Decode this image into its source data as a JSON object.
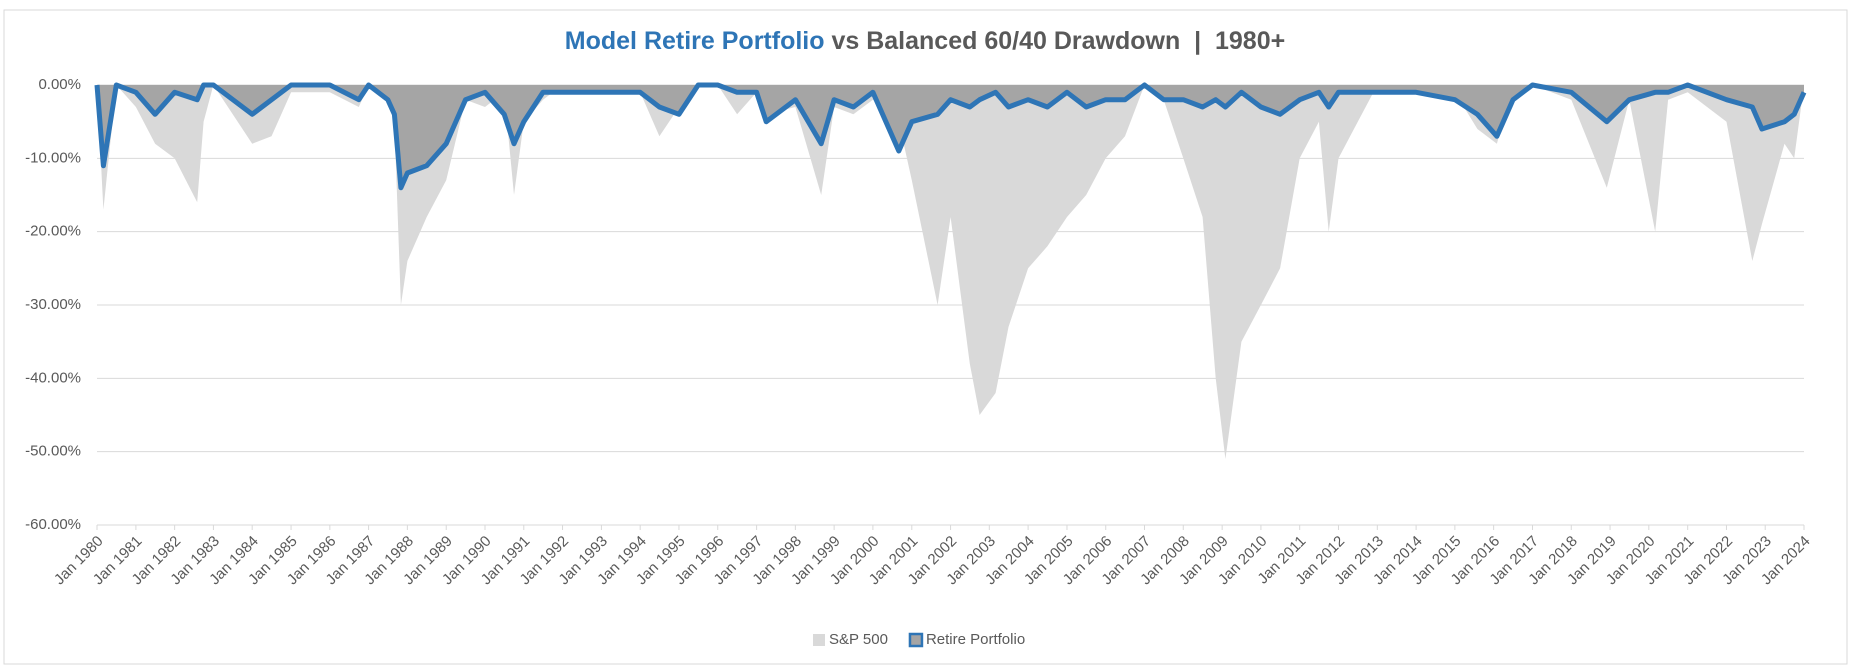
{
  "chart_data": {
    "type": "area-line",
    "title": [
      "Model Retire Portfolio",
      " vs Balanced 60/40 Drawdown  |  1980+"
    ],
    "x": [
      "Jan 1980",
      "Mar 1980",
      "Jul 1980",
      "Jan 1981",
      "Jul 1981",
      "Jan 1982",
      "Aug 1982",
      "Oct 1982",
      "Jan 1983",
      "Jan 1984",
      "Jul 1984",
      "Jan 1985",
      "Jan 1986",
      "Oct 1986",
      "Jan 1987",
      "Jul 1987",
      "Sep 1987",
      "Nov 1987",
      "Jan 1988",
      "Jul 1988",
      "Jan 1989",
      "Jul 1989",
      "Jan 1990",
      "Jul 1990",
      "Oct 1990",
      "Jan 1991",
      "Jul 1991",
      "Jan 1992",
      "Jan 1993",
      "Jan 1994",
      "Jul 1994",
      "Jan 1995",
      "Jul 1995",
      "Jan 1996",
      "Jul 1996",
      "Jan 1997",
      "Apr 1997",
      "Jan 1998",
      "Sep 1998",
      "Jan 1999",
      "Jul 1999",
      "Jan 2000",
      "Sep 2000",
      "Jan 2001",
      "Sep 2001",
      "Jan 2002",
      "Jul 2002",
      "Oct 2002",
      "Mar 2003",
      "Jul 2003",
      "Jan 2004",
      "Jul 2004",
      "Jan 2005",
      "Jul 2005",
      "Jan 2006",
      "Jul 2006",
      "Jan 2007",
      "Jul 2007",
      "Jan 2008",
      "Jul 2008",
      "Nov 2008",
      "Feb 2009",
      "Jul 2009",
      "Jan 2010",
      "Jul 2010",
      "Jan 2011",
      "Jul 2011",
      "Oct 2011",
      "Jan 2012",
      "Jul 2012",
      "Jan 2013",
      "Jan 2014",
      "Jan 2015",
      "Aug 2015",
      "Feb 2016",
      "Jul 2016",
      "Jan 2017",
      "Jan 2018",
      "Dec 2018",
      "Jul 2019",
      "Mar 2020",
      "Jul 2020",
      "Jan 2021",
      "Jan 2022",
      "Sep 2022",
      "Dec 2022",
      "Jul 2023",
      "Oct 2023",
      "Jan 2024"
    ],
    "series": [
      {
        "name": "S&P 500",
        "color": "#d9d9d9",
        "values": [
          0,
          -17,
          0,
          -3,
          -8,
          -10,
          -16,
          -5,
          0,
          -8,
          -7,
          -1,
          -1,
          -3,
          0,
          -2,
          -5,
          -30,
          -24,
          -18,
          -13,
          -2,
          -3,
          -1,
          -15,
          -5,
          -2,
          0,
          -1,
          -1,
          -7,
          -3,
          0,
          0,
          -4,
          -1,
          -4,
          -3,
          -15,
          -3,
          -4,
          -2,
          -5,
          -13,
          -30,
          -18,
          -38,
          -45,
          -42,
          -33,
          -25,
          -22,
          -18,
          -15,
          -10,
          -7,
          0,
          -2,
          -10,
          -18,
          -40,
          -51,
          -35,
          -30,
          -25,
          -10,
          -5,
          -20,
          -10,
          -5,
          0,
          -1,
          -1,
          -6,
          -8,
          0,
          0,
          -2,
          -14,
          -2,
          -20,
          -2,
          -1,
          -5,
          -24,
          -19,
          -8,
          -10,
          0
        ]
      },
      {
        "name": "Retire Portfolio",
        "color": "#2e75b6",
        "fill": "#a5a5a5",
        "values": [
          0,
          -11,
          0,
          -1,
          -4,
          -1,
          -2,
          0,
          0,
          -4,
          -2,
          0,
          0,
          -2,
          0,
          -2,
          -4,
          -14,
          -12,
          -11,
          -8,
          -2,
          -1,
          -4,
          -8,
          -5,
          -1,
          -1,
          -1,
          -1,
          -3,
          -4,
          0,
          0,
          -1,
          -1,
          -5,
          -2,
          -8,
          -2,
          -3,
          -1,
          -9,
          -5,
          -4,
          -2,
          -3,
          -2,
          -1,
          -3,
          -2,
          -3,
          -1,
          -3,
          -2,
          -2,
          0,
          -2,
          -2,
          -3,
          -2,
          -3,
          -1,
          -3,
          -4,
          -2,
          -1,
          -3,
          -1,
          -1,
          -1,
          -1,
          -2,
          -4,
          -7,
          -2,
          0,
          -1,
          -5,
          -2,
          -1,
          -1,
          0,
          -2,
          -3,
          -6,
          -5,
          -4,
          -1
        ]
      }
    ],
    "xlim": [
      "Jan 1980",
      "Jan 2024"
    ],
    "xticks": [
      "Jan 1980",
      "Jan 1981",
      "Jan 1982",
      "Jan 1983",
      "Jan 1984",
      "Jan 1985",
      "Jan 1986",
      "Jan 1987",
      "Jan 1988",
      "Jan 1989",
      "Jan 1990",
      "Jan 1991",
      "Jan 1992",
      "Jan 1993",
      "Jan 1994",
      "Jan 1995",
      "Jan 1996",
      "Jan 1997",
      "Jan 1998",
      "Jan 1999",
      "Jan 2000",
      "Jan 2001",
      "Jan 2002",
      "Jan 2003",
      "Jan 2004",
      "Jan 2005",
      "Jan 2006",
      "Jan 2007",
      "Jan 2008",
      "Jan 2009",
      "Jan 2010",
      "Jan 2011",
      "Jan 2012",
      "Jan 2013",
      "Jan 2014",
      "Jan 2015",
      "Jan 2016",
      "Jan 2017",
      "Jan 2018",
      "Jan 2019",
      "Jan 2020",
      "Jan 2021",
      "Jan 2022",
      "Jan 2023",
      "Jan 2024"
    ],
    "ylim": [
      -60,
      0
    ],
    "yticks": [
      {
        "value": 0,
        "label": "0.00%"
      },
      {
        "value": -10,
        "label": "-10.00%"
      },
      {
        "value": -20,
        "label": "-20.00%"
      },
      {
        "value": -30,
        "label": "-30.00%"
      },
      {
        "value": -40,
        "label": "-40.00%"
      },
      {
        "value": -50,
        "label": "-50.00%"
      },
      {
        "value": -60,
        "label": "-60.00%"
      }
    ],
    "grid": true,
    "legend": "bottom"
  }
}
